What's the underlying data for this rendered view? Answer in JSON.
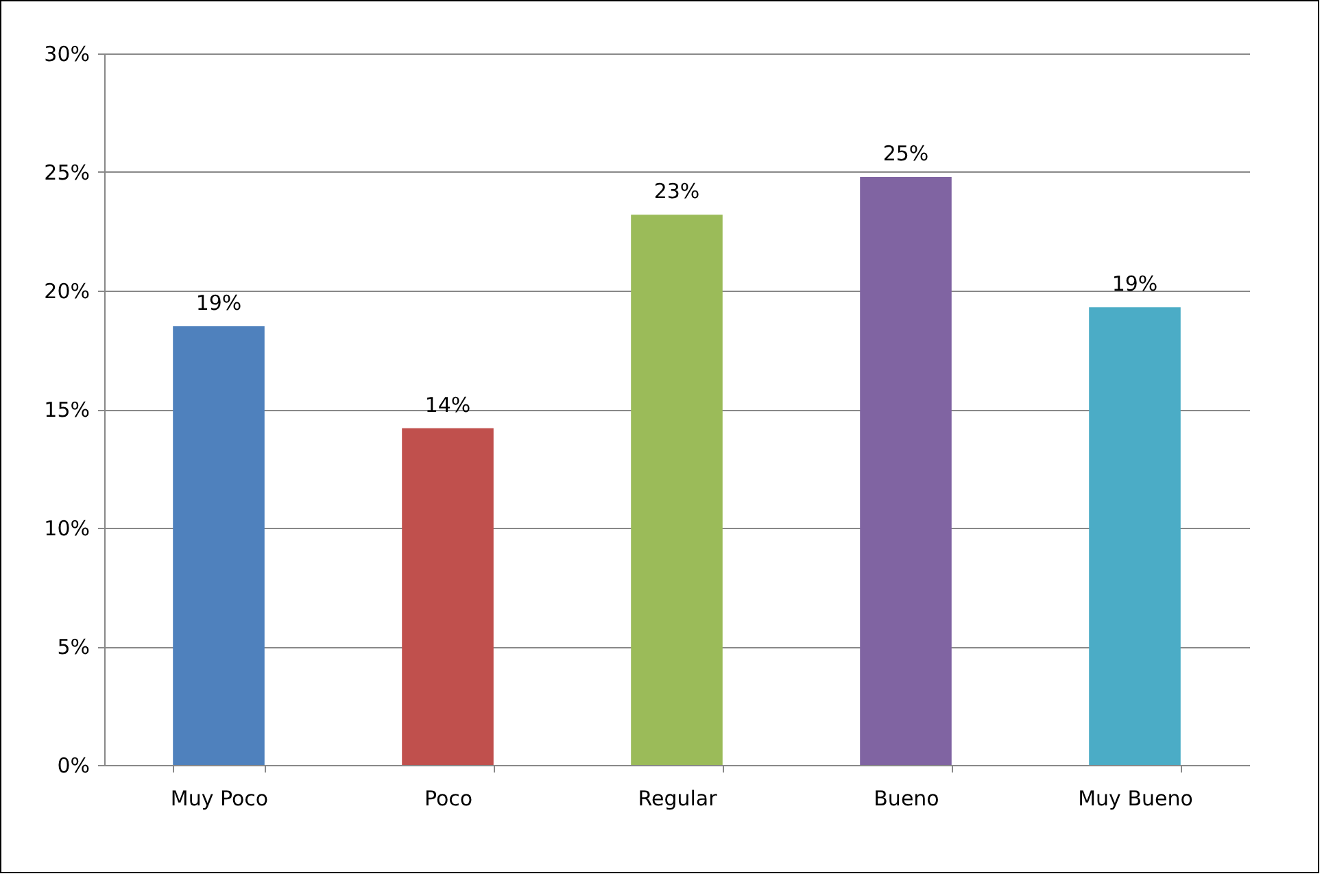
{
  "chart_data": {
    "type": "bar",
    "categories": [
      "Muy Poco",
      "Poco",
      "Regular",
      "Bueno",
      "Muy Bueno"
    ],
    "values": [
      18.5,
      14.2,
      23.2,
      24.8,
      19.3
    ],
    "value_labels": [
      "19%",
      "14%",
      "23%",
      "25%",
      "19%"
    ],
    "colors": [
      "#4f81bd",
      "#c0504d",
      "#9bbb59",
      "#8064a2",
      "#4bacc6"
    ],
    "ylim": [
      0,
      30
    ],
    "yticks": [
      {
        "value": 0,
        "label": "0%"
      },
      {
        "value": 5,
        "label": "5%"
      },
      {
        "value": 10,
        "label": "10%"
      },
      {
        "value": 15,
        "label": "15%"
      },
      {
        "value": 20,
        "label": "20%"
      },
      {
        "value": 25,
        "label": "25%"
      },
      {
        "value": 30,
        "label": "30%"
      }
    ],
    "grid": "y",
    "legend": false
  }
}
